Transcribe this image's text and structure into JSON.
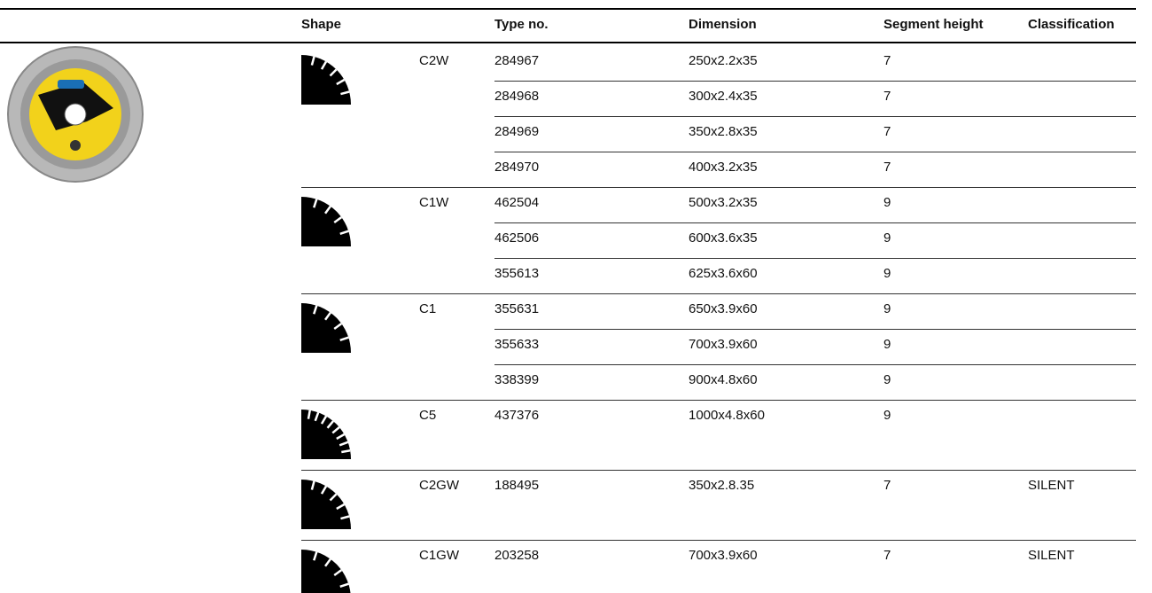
{
  "header": {
    "shape": "Shape",
    "type_no": "Type no.",
    "dimension": "Dimension",
    "segment_height": "Segment height",
    "classification": "Classification"
  },
  "groups": [
    {
      "code": "C2W",
      "rows": [
        {
          "type_no": "284967",
          "dimension": "250x2.2x35",
          "segment_height": 7
        },
        {
          "type_no": "284968",
          "dimension": "300x2.4x35",
          "segment_height": 7
        },
        {
          "type_no": "284969",
          "dimension": "350x2.8x35",
          "segment_height": 7
        },
        {
          "type_no": "284970",
          "dimension": "400x3.2x35",
          "segment_height": 7
        }
      ]
    },
    {
      "code": "C1W",
      "rows": [
        {
          "type_no": "462504",
          "dimension": "500x3.2x35",
          "segment_height": 9
        },
        {
          "type_no": "462506",
          "dimension": "600x3.6x35",
          "segment_height": 9
        },
        {
          "type_no": "355613",
          "dimension": "625x3.6x60",
          "segment_height": 9
        }
      ]
    },
    {
      "code": "C1",
      "rows": [
        {
          "type_no": "355631",
          "dimension": "650x3.9x60",
          "segment_height": 9
        },
        {
          "type_no": "355633",
          "dimension": "700x3.9x60",
          "segment_height": 9
        },
        {
          "type_no": "338399",
          "dimension": "900x4.8x60",
          "segment_height": 9
        }
      ]
    },
    {
      "code": "C5",
      "rows": [
        {
          "type_no": "437376",
          "dimension": "1000x4.8x60",
          "segment_height": 9
        }
      ]
    },
    {
      "code": "C2GW",
      "rows": [
        {
          "type_no": "188495",
          "dimension": "350x2.8.35",
          "segment_height": 7,
          "classification": "SILENT"
        }
      ]
    },
    {
      "code": "C1GW",
      "rows": [
        {
          "type_no": "203258",
          "dimension": "700x3.9x60",
          "segment_height": 7,
          "classification": "SILENT"
        }
      ]
    }
  ]
}
